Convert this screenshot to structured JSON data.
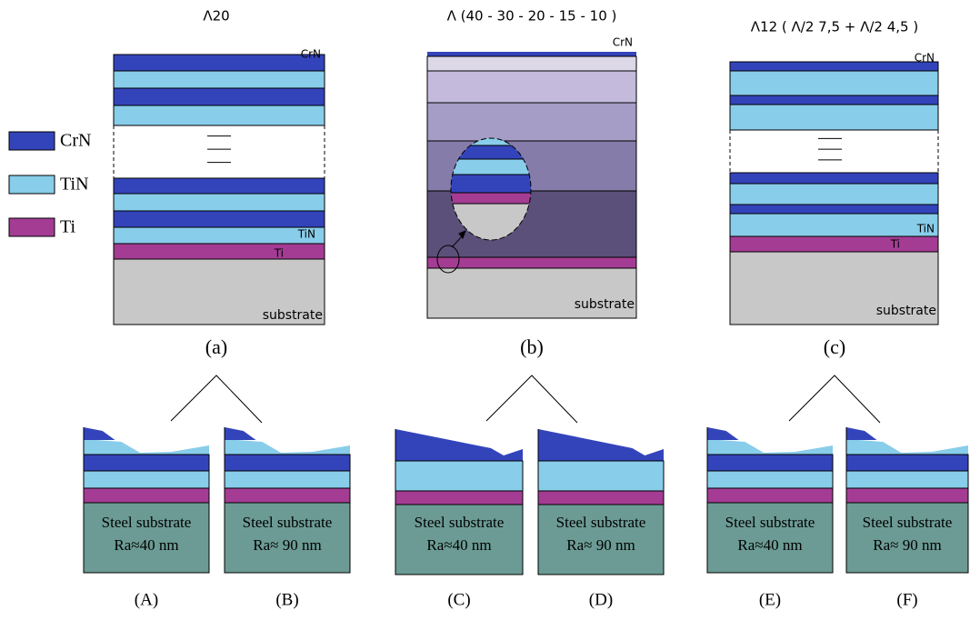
{
  "legend": [
    "CrN",
    "TiN",
    "Ti"
  ],
  "panels": [
    {
      "title": "Λ20",
      "top_label": "CrN",
      "labels": [
        "TiN",
        "Ti"
      ],
      "substrate": "substrate",
      "caption": "(a)"
    },
    {
      "title": "Λ (40 - 30 - 20 - 15 - 10 )",
      "top_label": "CrN",
      "labels": [],
      "substrate": "substrate",
      "caption": "(b)"
    },
    {
      "title": "Λ12 ( Λ/2 7,5 + Λ/2 4,5 )",
      "top_label": "CrN",
      "labels": [
        "TiN",
        "Ti"
      ],
      "substrate": "substrate",
      "caption": "(c)"
    }
  ],
  "samples": [
    {
      "substrate": "Steel substrate",
      "roughness": "Ra≈40 nm",
      "caption": "(A)"
    },
    {
      "substrate": "Steel substrate",
      "roughness": "Ra≈ 90 nm",
      "caption": "(B)"
    },
    {
      "substrate": "Steel substrate",
      "roughness": "Ra≈40 nm",
      "caption": "(C)"
    },
    {
      "substrate": "Steel substrate",
      "roughness": "Ra≈ 90 nm",
      "caption": "(D)"
    },
    {
      "substrate": "Steel substrate",
      "roughness": "Ra≈40 nm",
      "caption": "(E)"
    },
    {
      "substrate": "Steel substrate",
      "roughness": "Ra≈ 90 nm",
      "caption": "(F)"
    }
  ]
}
